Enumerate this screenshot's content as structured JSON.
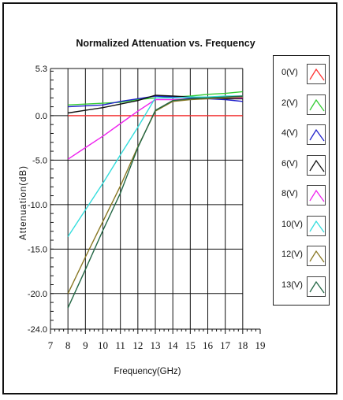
{
  "chart_data": {
    "type": "line",
    "title": "Normalized Attenuation vs. Frequency",
    "xlabel": "Frequency(GHz)",
    "ylabel": "Attenuation(dB)",
    "xlim": [
      7,
      19
    ],
    "ylim": [
      -24.0,
      5.3
    ],
    "x_ticks": [
      "7",
      "8",
      "9",
      "10",
      "11",
      "12",
      "13",
      "14",
      "15",
      "16",
      "17",
      "18",
      "19"
    ],
    "y_ticks": [
      "5.3",
      "0.0",
      "-5.0",
      "-10.0",
      "-15.0",
      "-20.0",
      "-24.0"
    ],
    "grid": true,
    "legend_position": "right",
    "x": [
      8,
      9,
      10,
      11,
      12,
      13,
      14,
      15,
      16,
      17,
      18
    ],
    "series": [
      {
        "name": "0(V)",
        "color": "#ff3030",
        "values": [
          0.0,
          0.0,
          0.0,
          0.0,
          0.0,
          0.0,
          0.0,
          0.0,
          0.0,
          0.0,
          0.0
        ]
      },
      {
        "name": "2(V)",
        "color": "#33cc33",
        "values": [
          1.2,
          1.3,
          1.4,
          1.5,
          1.8,
          2.0,
          2.1,
          2.2,
          2.4,
          2.5,
          2.7
        ]
      },
      {
        "name": "4(V)",
        "color": "#2020cc",
        "values": [
          1.0,
          1.1,
          1.2,
          1.6,
          1.9,
          2.2,
          2.1,
          2.0,
          1.9,
          1.8,
          1.6
        ]
      },
      {
        "name": "6(V)",
        "color": "#111111",
        "values": [
          0.3,
          0.6,
          0.9,
          1.3,
          1.7,
          2.3,
          2.2,
          2.1,
          2.0,
          1.9,
          1.9
        ]
      },
      {
        "name": "8(V)",
        "color": "#ee22ee",
        "values": [
          -4.9,
          -3.6,
          -2.3,
          -0.9,
          0.5,
          1.8,
          1.8,
          1.9,
          1.9,
          2.0,
          2.0
        ]
      },
      {
        "name": "10(V)",
        "color": "#33dddd",
        "values": [
          -13.6,
          -10.6,
          -7.6,
          -4.4,
          -1.3,
          2.0,
          2.0,
          2.1,
          2.1,
          2.2,
          2.2
        ]
      },
      {
        "name": "12(V)",
        "color": "#887722",
        "values": [
          -20.0,
          -15.9,
          -11.9,
          -7.9,
          -3.5,
          0.5,
          1.6,
          1.8,
          1.9,
          2.0,
          2.1
        ]
      },
      {
        "name": "13(V)",
        "color": "#226644",
        "values": [
          -21.6,
          -17.3,
          -12.9,
          -8.7,
          -3.6,
          0.6,
          1.7,
          1.9,
          2.0,
          2.1,
          2.2
        ]
      }
    ]
  }
}
